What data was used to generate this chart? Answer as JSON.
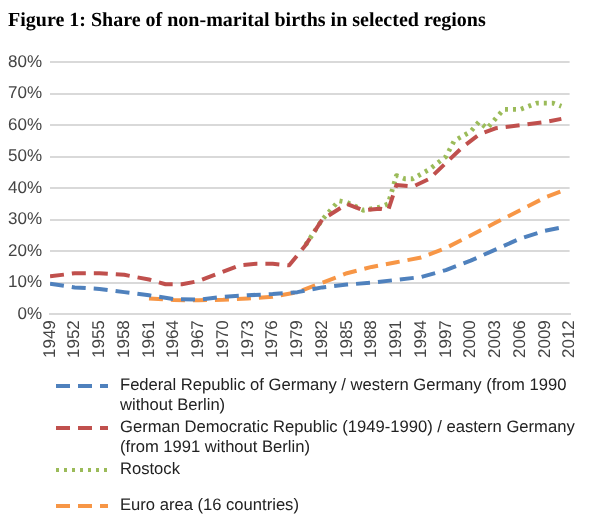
{
  "chart_data": {
    "type": "line",
    "title": "Figure 1: Share of non-marital births in selected regions",
    "xlim": [
      1949,
      2012
    ],
    "xticks": [
      1949,
      1952,
      1955,
      1958,
      1961,
      1964,
      1967,
      1970,
      1973,
      1976,
      1979,
      1982,
      1985,
      1988,
      1991,
      1994,
      1997,
      2000,
      2003,
      2006,
      2009,
      2012
    ],
    "ylim": [
      0,
      80
    ],
    "yticks": [
      {
        "value": 0,
        "label": "0%"
      },
      {
        "value": 10,
        "label": "10%"
      },
      {
        "value": 20,
        "label": "20%"
      },
      {
        "value": 30,
        "label": "30%"
      },
      {
        "value": 40,
        "label": "40%"
      },
      {
        "value": 50,
        "label": "50%"
      },
      {
        "value": 60,
        "label": "60%"
      },
      {
        "value": 70,
        "label": "70%"
      },
      {
        "value": 80,
        "label": "80%"
      }
    ],
    "grid": "y",
    "legend": "bottom",
    "marker": "none",
    "series": [
      {
        "name": "Federal Republic of Germany / western Germany (from 1990 without Berlin)",
        "color": "#4f81bd",
        "line_style": "dashed",
        "x": [
          1949,
          1952,
          1955,
          1958,
          1961,
          1964,
          1967,
          1970,
          1973,
          1976,
          1979,
          1982,
          1985,
          1988,
          1991,
          1994,
          1997,
          2000,
          2003,
          2006,
          2009,
          2011
        ],
        "values": [
          9.7,
          8.5,
          8,
          7,
          6,
          4.8,
          4.6,
          5.5,
          6,
          6.4,
          7,
          8.5,
          9.4,
          10,
          10.9,
          11.8,
          14,
          17,
          20.5,
          24,
          26.5,
          27.5
        ]
      },
      {
        "name": "German Democratic Republic (1949-1990) / eastern Germany (from 1991 without Berlin)",
        "color": "#c0504d",
        "line_style": "dashed",
        "x": [
          1949,
          1952,
          1955,
          1958,
          1961,
          1963,
          1965,
          1967,
          1970,
          1972,
          1974,
          1976,
          1978,
          1980,
          1982,
          1985,
          1987,
          1989,
          1990,
          1991,
          1993,
          1995,
          1997,
          1999,
          2001,
          2003,
          2006,
          2009,
          2011
        ],
        "values": [
          12,
          13,
          13,
          12.5,
          11,
          9.5,
          9.5,
          10.5,
          13.5,
          15.5,
          16,
          16,
          15.5,
          22,
          30,
          35,
          33,
          33.5,
          33,
          41,
          40.5,
          43,
          48,
          53,
          57,
          59,
          60,
          61,
          62
        ]
      },
      {
        "name": "Rostock",
        "color": "#9bbb59",
        "line_style": "dotted",
        "x": [
          1980,
          1982,
          1984,
          1985,
          1987,
          1989,
          1990,
          1991,
          1992,
          1993,
          1995,
          1997,
          1998,
          2000,
          2001,
          2002,
          2003,
          2004,
          2006,
          2008,
          2010,
          2011
        ],
        "values": [
          22,
          30,
          36,
          35.5,
          33,
          34,
          35,
          44,
          43,
          43,
          46,
          50,
          55,
          58,
          61,
          59,
          62,
          65,
          65,
          67,
          67,
          66
        ]
      },
      {
        "name": "Euro area (16 countries)",
        "color": "#f79646",
        "line_style": "dashed",
        "x": [
          1961,
          1964,
          1967,
          1970,
          1973,
          1976,
          1979,
          1982,
          1985,
          1988,
          1991,
          1994,
          1997,
          2000,
          2003,
          2006,
          2009,
          2011
        ],
        "values": [
          5,
          4.5,
          4.4,
          4.6,
          5,
          5.5,
          7,
          10,
          13,
          15,
          16.5,
          18,
          21,
          25,
          29,
          33,
          37,
          39
        ]
      }
    ]
  }
}
